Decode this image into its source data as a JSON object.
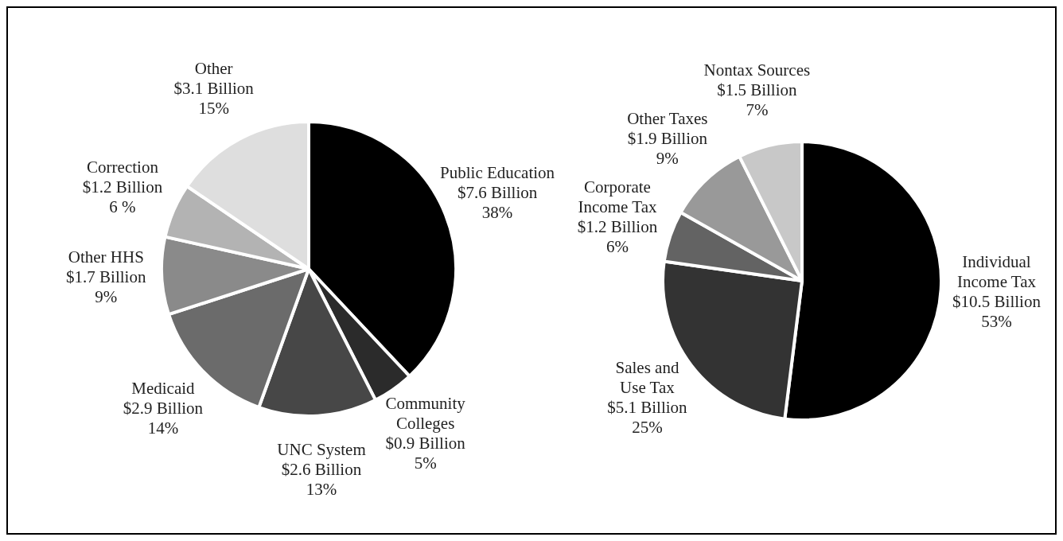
{
  "chart_data": [
    {
      "type": "pie",
      "categories": [
        "Public Education",
        "Community\nColleges",
        "UNC System",
        "Medicaid",
        "Other HHS",
        "Correction",
        "Other"
      ],
      "values": [
        7.6,
        0.9,
        2.6,
        2.9,
        1.7,
        1.2,
        3.1
      ],
      "colors": [
        "#000000",
        "#2b2b2b",
        "#474747",
        "#6b6b6b",
        "#8a8a8a",
        "#b3b3b3",
        "#dedede"
      ],
      "value_labels": [
        "$7.6 Billion\n38%",
        "$0.9 Billion\n5%",
        "$2.6 Billion\n13%",
        "$2.9 Billion\n14%",
        "$1.7 Billion\n9%",
        "$1.2 Billion\n6 %",
        "$3.1 Billion\n15%"
      ]
    },
    {
      "type": "pie",
      "categories": [
        "Individual\nIncome Tax",
        "Sales and\nUse Tax",
        "Corporate\nIncome Tax",
        "Other Taxes",
        "Nontax Sources"
      ],
      "values": [
        10.5,
        5.1,
        1.2,
        1.9,
        1.5
      ],
      "colors": [
        "#000000",
        "#333333",
        "#636363",
        "#999999",
        "#c8c8c8"
      ],
      "value_labels": [
        "$10.5 Billion\n53%",
        "$5.1 Billion\n25%",
        "$1.2 Billion\n6%",
        "$1.9 Billion\n9%",
        "$1.5 Billion\n7%"
      ]
    }
  ]
}
